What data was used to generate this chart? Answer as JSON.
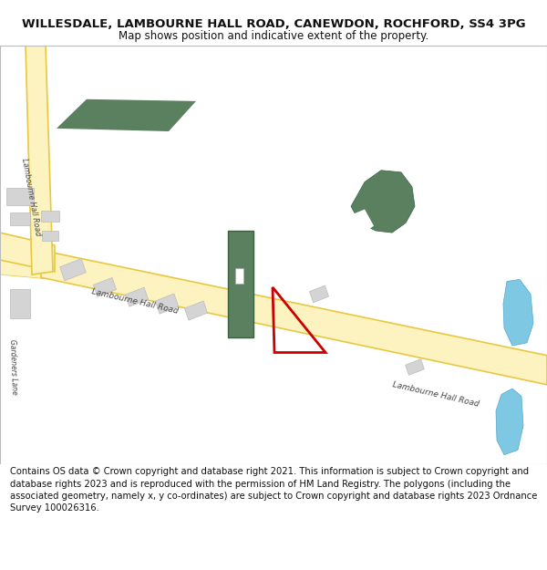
{
  "title_line1": "WILLESDALE, LAMBOURNE HALL ROAD, CANEWDON, ROCHFORD, SS4 3PG",
  "title_line2": "Map shows position and indicative extent of the property.",
  "footer_text": "Contains OS data © Crown copyright and database right 2021. This information is subject to Crown copyright and database rights 2023 and is reproduced with the permission of HM Land Registry. The polygons (including the associated geometry, namely x, y co-ordinates) are subject to Crown copyright and database rights 2023 Ordnance Survey 100026316.",
  "bg_color": "#ffffff",
  "map_bg": "#ffffff",
  "road_fill": "#fdf3c0",
  "road_edge": "#e8c840",
  "green_dark": "#5a8060",
  "gray_bld": "#d4d4d4",
  "gray_bld_edge": "#bbbbbb",
  "red_plot": "#cc0000",
  "blue_water": "#7ec8e3",
  "text_dark": "#444444",
  "title_fontsize": 9.5,
  "subtitle_fontsize": 8.5,
  "footer_fontsize": 7.2
}
